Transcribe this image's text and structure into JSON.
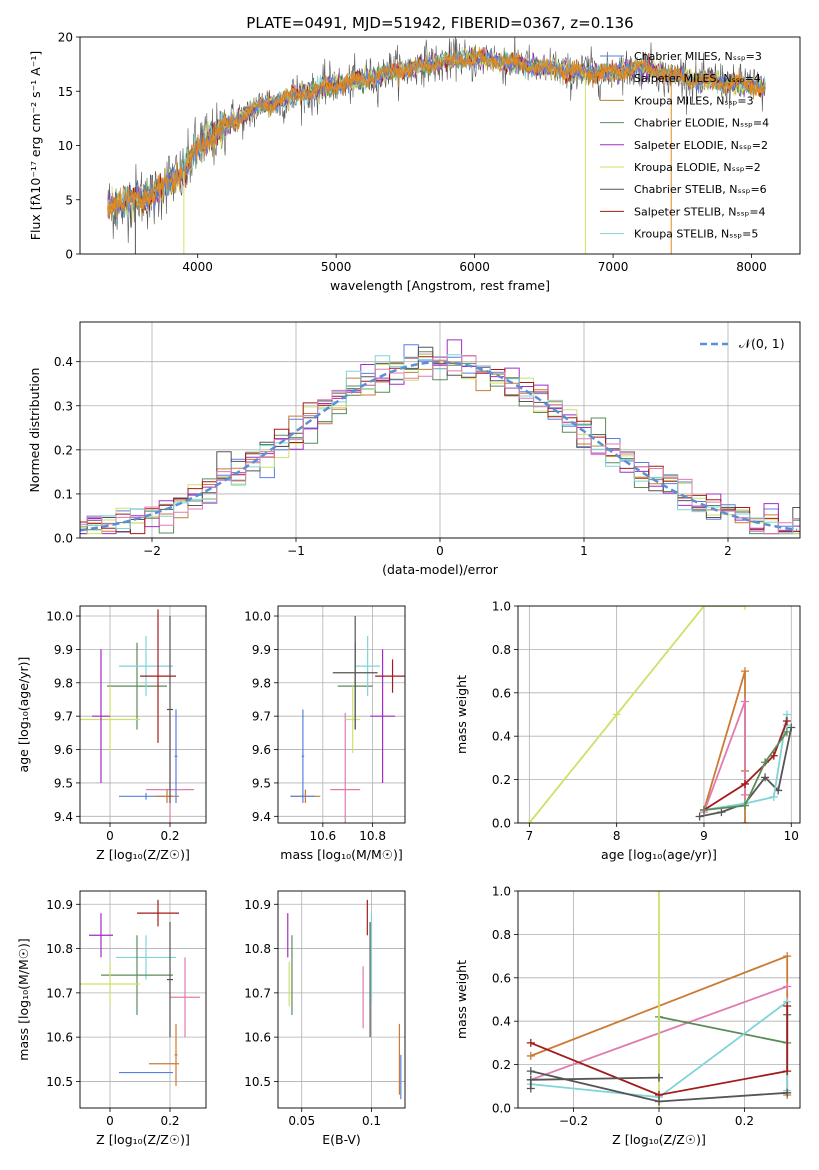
{
  "colors": {
    "Chabrier MILES": "#5b7fe0",
    "Salpeter MILES": "#e8891e",
    "Kroupa MILES": "#b8862b",
    "Chabrier ELODIE": "#5a8c5a",
    "Salpeter ELODIE": "#a32cc4",
    "Kroupa ELODIE": "#cfe06a",
    "Chabrier STELIB": "#555555",
    "Salpeter STELIB": "#a31b1b",
    "Kroupa STELIB": "#7fd4d8",
    "pink": "#e07bb0",
    "orange": "#cc7a33"
  },
  "chart_data": [
    {
      "type": "line",
      "title": "PLATE=0491, MJD=51942, FIBERID=0367, z=0.136",
      "xlabel": "wavelength [Angstrom, rest frame]",
      "ylabel": "Flux [fλ10⁻¹⁷ erg cm⁻² s⁻¹ A⁻¹]",
      "xlim": [
        3150,
        8350
      ],
      "ylim": [
        0,
        20
      ],
      "xticks": [
        4000,
        5000,
        6000,
        7000,
        8000
      ],
      "yticks": [
        0,
        5,
        10,
        15,
        20
      ],
      "legend_position": "top-right",
      "series": [
        {
          "name": "Chabrier MILES, N_SSP=3"
        },
        {
          "name": "Salpeter MILES, N_SSP=4"
        },
        {
          "name": "Kroupa MILES, N_SSP=3"
        },
        {
          "name": "Chabrier ELODIE, N_SSP=4"
        },
        {
          "name": "Salpeter ELODIE, N_SSP=2"
        },
        {
          "name": "Kroupa ELODIE, N_SSP=2"
        },
        {
          "name": "Chabrier STELIB, N_SSP=6"
        },
        {
          "name": "Salpeter STELIB, N_SSP=4"
        },
        {
          "name": "Kroupa STELIB, N_SSP=5"
        }
      ],
      "continuum": {
        "x": [
          3350,
          3500,
          3700,
          3900,
          4000,
          4200,
          4400,
          4600,
          4800,
          5000,
          5200,
          5400,
          5600,
          5800,
          6000,
          6200,
          6400,
          6600,
          6800,
          7000,
          7200,
          7400,
          7600,
          7800,
          8000,
          8100
        ],
        "y": [
          4.3,
          4.8,
          5.6,
          7.6,
          9.8,
          11.8,
          13.3,
          14.2,
          14.9,
          15.6,
          16.1,
          16.8,
          17.3,
          17.8,
          18.0,
          17.8,
          17.3,
          17.0,
          16.7,
          16.7,
          17.3,
          16.5,
          16.0,
          15.8,
          15.5,
          15.3
        ]
      },
      "drops": [
        {
          "x": 3550,
          "to": 0
        },
        {
          "x": 3900,
          "to": 0
        },
        {
          "x": 6800,
          "to": 0
        },
        {
          "x": 7420,
          "to": 0
        }
      ]
    },
    {
      "type": "line",
      "xlabel": "(data-model)/error",
      "ylabel": "Normed distribution",
      "xlim": [
        -2.5,
        2.5
      ],
      "ylim": [
        0,
        0.49
      ],
      "xticks": [
        -2,
        -1,
        0,
        1,
        2
      ],
      "yticks": [
        0.0,
        0.1,
        0.2,
        0.3,
        0.4
      ],
      "legend_position": "top-right",
      "legend": "𝒩(0, 1)",
      "histogram_bin_width": 0.1
    },
    {
      "type": "scatter",
      "xlabel": "Z [log₁₀(Z/Z☉)]",
      "ylabel": "age  [log₁₀(age/yr)]",
      "xlim": [
        -0.1,
        0.32
      ],
      "ylim": [
        9.38,
        10.03
      ],
      "xticks": [
        0.0,
        0.2
      ],
      "yticks": [
        9.4,
        9.5,
        9.6,
        9.7,
        9.8,
        9.9,
        10.0
      ],
      "points": [
        {
          "series": "pink",
          "x": 0.2,
          "y": 9.48,
          "xerr": 0.08,
          "yerr": 0.23
        },
        {
          "series": "Chabrier MILES",
          "x": 0.12,
          "y": 9.46,
          "xerr": 0.09,
          "yerr": 0.01
        },
        {
          "series": "orange",
          "x": 0.19,
          "y": 9.46,
          "xerr": 0.04,
          "yerr": 0.02
        },
        {
          "series": "Chabrier ELODIE",
          "x": 0.09,
          "y": 9.79,
          "xerr": 0.1,
          "yerr": 0.13
        },
        {
          "series": "Kroupa ELODIE",
          "x": 0.0,
          "y": 9.69,
          "xerr": 0.1,
          "yerr": 0.1
        },
        {
          "series": "Salpeter ELODIE",
          "x": -0.03,
          "y": 9.7,
          "xerr": 0.03,
          "yerr": 0.2
        },
        {
          "series": "Kroupa STELIB",
          "x": 0.12,
          "y": 9.85,
          "xerr": 0.09,
          "yerr": 0.09
        },
        {
          "series": "Salpeter STELIB",
          "x": 0.16,
          "y": 9.82,
          "xerr": 0.06,
          "yerr": 0.2
        },
        {
          "series": "Chabrier STELIB",
          "x": 0.2,
          "y": 9.72,
          "xerr": 0.01,
          "yerr": 0.28
        },
        {
          "series": "Chabrier MILES",
          "x": 0.22,
          "y": 9.58,
          "xerr": 0.005,
          "yerr": 0.14
        }
      ]
    },
    {
      "type": "scatter",
      "xlabel": "mass [log₁₀(M/M☉)]",
      "xlim": [
        10.42,
        10.93
      ],
      "ylim": [
        9.38,
        10.03
      ],
      "xticks": [
        10.6,
        10.8
      ],
      "yticks": [
        9.4,
        9.5,
        9.6,
        9.7,
        9.8,
        9.9,
        10.0
      ],
      "points": [
        {
          "series": "Chabrier MILES",
          "x": 10.52,
          "y": 9.58,
          "xerr": 0.005,
          "yerr": 0.14
        },
        {
          "series": "orange",
          "x": 10.53,
          "y": 9.46,
          "xerr": 0.06,
          "yerr": 0.02
        },
        {
          "series": "Chabrier MILES",
          "x": 10.52,
          "y": 9.46,
          "xerr": 0.05,
          "yerr": 0.005
        },
        {
          "series": "pink",
          "x": 10.69,
          "y": 9.48,
          "xerr": 0.06,
          "yerr": 0.23
        },
        {
          "series": "Chabrier ELODIE",
          "x": 10.73,
          "y": 9.79,
          "xerr": 0.07,
          "yerr": 0.13
        },
        {
          "series": "Kroupa ELODIE",
          "x": 10.72,
          "y": 9.69,
          "xerr": 0.03,
          "yerr": 0.1
        },
        {
          "series": "Kroupa STELIB",
          "x": 10.78,
          "y": 9.85,
          "xerr": 0.05,
          "yerr": 0.09
        },
        {
          "series": "Salpeter ELODIE",
          "x": 10.84,
          "y": 9.7,
          "xerr": 0.05,
          "yerr": 0.2
        },
        {
          "series": "Salpeter STELIB",
          "x": 10.88,
          "y": 9.82,
          "xerr": 0.07,
          "yerr": 0.05
        },
        {
          "series": "Chabrier STELIB",
          "x": 10.73,
          "y": 9.83,
          "xerr": 0.09,
          "yerr": 0.17
        }
      ]
    },
    {
      "type": "line",
      "xlabel": "age  [log₁₀(age/yr)]",
      "ylabel": "mass weight",
      "xlim": [
        6.87,
        10.1
      ],
      "ylim": [
        0,
        1
      ],
      "xticks": [
        7,
        8,
        9,
        10
      ],
      "yticks": [
        0.0,
        0.2,
        0.4,
        0.6,
        0.8,
        1.0
      ],
      "series": [
        {
          "series": "Kroupa ELODIE",
          "x": [
            7.0,
            8.0,
            9.0,
            9.47
          ],
          "y": [
            0.0,
            0.5,
            1.0,
            1.0
          ]
        },
        {
          "series": "orange",
          "x": [
            9.0,
            9.47,
            9.47,
            9.47
          ],
          "y": [
            0.06,
            0.7,
            0.24,
            0.0
          ]
        },
        {
          "series": "pink",
          "x": [
            9.0,
            9.47,
            9.47
          ],
          "y": [
            0.05,
            0.56,
            0.13
          ]
        },
        {
          "series": "Chabrier STELIB",
          "x": [
            8.95,
            9.2,
            9.47,
            9.7,
            9.85,
            10.0
          ],
          "y": [
            0.03,
            0.05,
            0.09,
            0.21,
            0.15,
            0.44
          ]
        },
        {
          "series": "Kroupa STELIB",
          "x": [
            9.0,
            9.47,
            9.8,
            9.95,
            9.95
          ],
          "y": [
            0.06,
            0.09,
            0.12,
            0.5,
            0.45
          ]
        },
        {
          "series": "Salpeter STELIB",
          "x": [
            9.0,
            9.47,
            9.8,
            9.95
          ],
          "y": [
            0.06,
            0.18,
            0.31,
            0.47
          ]
        },
        {
          "series": "Chabrier ELODIE",
          "x": [
            9.0,
            9.47,
            9.7,
            9.95
          ],
          "y": [
            0.06,
            0.08,
            0.28,
            0.42
          ]
        }
      ]
    },
    {
      "type": "scatter",
      "xlabel": "Z [log₁₀(Z/Z☉)]",
      "ylabel": "mass [log₁₀(M/M☉)]",
      "xlim": [
        -0.1,
        0.32
      ],
      "ylim": [
        10.44,
        10.93
      ],
      "xticks": [
        0.0,
        0.2
      ],
      "yticks": [
        10.5,
        10.6,
        10.7,
        10.8,
        10.9
      ],
      "points": [
        {
          "series": "Salpeter ELODIE",
          "x": -0.03,
          "y": 10.83,
          "xerr": 0.04,
          "yerr": 0.05
        },
        {
          "series": "Salpeter STELIB",
          "x": 0.16,
          "y": 10.88,
          "xerr": 0.07,
          "yerr": 0.03
        },
        {
          "series": "Kroupa STELIB",
          "x": 0.12,
          "y": 10.78,
          "xerr": 0.1,
          "yerr": 0.05
        },
        {
          "series": "Chabrier ELODIE",
          "x": 0.09,
          "y": 10.74,
          "xerr": 0.12,
          "yerr": 0.09
        },
        {
          "series": "Kroupa ELODIE",
          "x": 0.0,
          "y": 10.72,
          "xerr": 0.1,
          "yerr": 0.05
        },
        {
          "series": "pink",
          "x": 0.25,
          "y": 10.69,
          "xerr": 0.05,
          "yerr": 0.09
        },
        {
          "series": "Chabrier STELIB",
          "x": 0.2,
          "y": 10.73,
          "xerr": 0.01,
          "yerr": 0.13
        },
        {
          "series": "orange",
          "x": 0.18,
          "y": 10.54,
          "xerr": 0.05,
          "yerr": 0.0
        },
        {
          "series": "Chabrier MILES",
          "x": 0.12,
          "y": 10.52,
          "xerr": 0.09,
          "yerr": 0.0
        },
        {
          "series": "orange",
          "x": 0.22,
          "y": 10.56,
          "xerr": 0.005,
          "yerr": 0.07
        }
      ]
    },
    {
      "type": "scatter",
      "xlabel": "E(B-V)",
      "xlim": [
        0.033,
        0.124
      ],
      "ylim": [
        10.44,
        10.93
      ],
      "xticks": [
        0.05,
        0.1
      ],
      "yticks": [
        10.5,
        10.6,
        10.7,
        10.8,
        10.9
      ],
      "points": [
        {
          "series": "Salpeter ELODIE",
          "x": 0.04,
          "y": 10.83,
          "yerr": 0.05
        },
        {
          "series": "Kroupa ELODIE",
          "x": 0.041,
          "y": 10.72,
          "yerr": 0.05
        },
        {
          "series": "Chabrier ELODIE",
          "x": 0.043,
          "y": 10.74,
          "yerr": 0.09
        },
        {
          "series": "pink",
          "x": 0.094,
          "y": 10.69,
          "yerr": 0.07
        },
        {
          "series": "Salpeter STELIB",
          "x": 0.097,
          "y": 10.87,
          "yerr": 0.04
        },
        {
          "series": "Chabrier STELIB",
          "x": 0.099,
          "y": 10.73,
          "yerr": 0.13
        },
        {
          "series": "Kroupa STELIB",
          "x": 0.1,
          "y": 10.78,
          "yerr": 0.1
        },
        {
          "series": "orange",
          "x": 0.12,
          "y": 10.55,
          "yerr": 0.08
        },
        {
          "series": "Chabrier MILES",
          "x": 0.121,
          "y": 10.51,
          "yerr": 0.05
        }
      ]
    },
    {
      "type": "line",
      "xlabel": "Z [log₁₀(Z/Z☉)]",
      "ylabel": "mass weight",
      "xlim": [
        -0.33,
        0.33
      ],
      "ylim": [
        0,
        1
      ],
      "xticks": [
        -0.2,
        0.0,
        0.2
      ],
      "yticks": [
        0.0,
        0.2,
        0.4,
        0.6,
        0.8,
        1.0
      ],
      "series": [
        {
          "series": "orange",
          "x": [
            -0.3,
            0.3,
            0.3
          ],
          "y": [
            0.24,
            0.7,
            0.06
          ]
        },
        {
          "series": "pink",
          "x": [
            -0.3,
            0.3
          ],
          "y": [
            0.13,
            0.56
          ]
        },
        {
          "series": "Chabrier ELODIE",
          "x": [
            0.0,
            0.0,
            0.3,
            0.3
          ],
          "y": [
            0.14,
            0.42,
            0.3,
            0.43
          ]
        },
        {
          "series": "Kroupa ELODIE",
          "x": [
            0.0,
            0.0
          ],
          "y": [
            0.0,
            1.0
          ]
        },
        {
          "series": "Kroupa STELIB",
          "x": [
            -0.3,
            0.0,
            0.3,
            0.3
          ],
          "y": [
            0.11,
            0.05,
            0.49,
            0.08
          ]
        },
        {
          "series": "Salpeter STELIB",
          "x": [
            -0.3,
            0.0,
            0.3,
            0.3
          ],
          "y": [
            0.3,
            0.06,
            0.17,
            0.47
          ]
        },
        {
          "series": "Chabrier STELIB",
          "x": [
            -0.3,
            0.0,
            0.3
          ],
          "y": [
            0.17,
            0.03,
            0.07
          ]
        },
        {
          "series": "Chabrier STELIB",
          "x": [
            -0.3,
            -0.3,
            0.0
          ],
          "y": [
            0.09,
            0.13,
            0.14
          ]
        }
      ]
    }
  ]
}
